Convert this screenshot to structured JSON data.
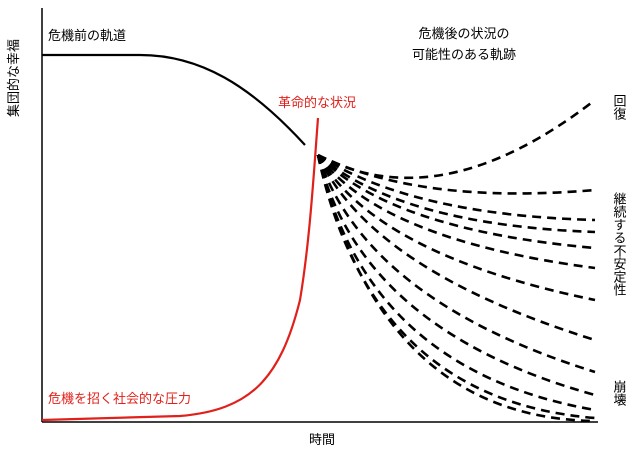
{
  "y_axis_label": "集団的な幸福",
  "x_axis_label": "時間",
  "labels": {
    "pre_crisis": "危機前の軌道",
    "post_crisis": [
      "危機後の状況の",
      "可能性のある軌跡"
    ],
    "revolutionary": "革命的な状況",
    "pressure": "危機を招く社会的な圧力",
    "recovery": "回復",
    "instability": "継続する不安定性",
    "collapse": "崩壊"
  }
}
